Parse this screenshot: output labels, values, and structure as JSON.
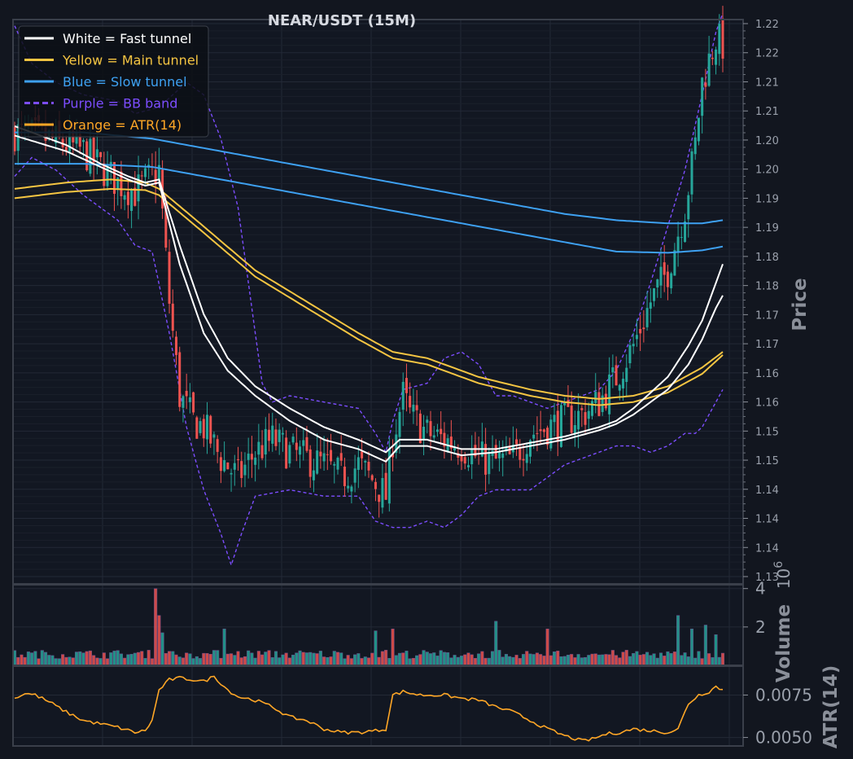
{
  "chart_data": [
    {
      "panel": "price",
      "type": "candlestick",
      "title": "NEAR/USDT (15M)",
      "ylabel": "Price",
      "y_tick_labels": [
        "1.22",
        "1.22",
        "1.21",
        "1.21",
        "1.20",
        "1.20",
        "1.19",
        "1.19",
        "1.18",
        "1.18",
        "1.17",
        "1.17",
        "1.16",
        "1.16",
        "1.15",
        "1.15",
        "1.14",
        "1.14",
        "1.14",
        "1.13"
      ],
      "ylim": [
        1.13,
        1.22
      ],
      "grid": true,
      "legend_position": "top-left",
      "legend": [
        {
          "label": "White = Fast tunnel",
          "color": "#ffffff",
          "style": "solid"
        },
        {
          "label": "Yellow = Main tunnel",
          "color": "#f5c542",
          "style": "solid"
        },
        {
          "label": "Blue = Slow tunnel",
          "color": "#3ea1f2",
          "style": "solid"
        },
        {
          "label": "Purple = BB band",
          "color": "#7c4dff",
          "style": "dashed"
        },
        {
          "label": "Orange = ATR(14)",
          "color": "#ffa726",
          "style": "solid"
        }
      ],
      "close_anchors": [
        [
          0,
          1.202
        ],
        [
          10,
          1.201
        ],
        [
          20,
          1.199
        ],
        [
          30,
          1.194
        ],
        [
          35,
          1.1925
        ],
        [
          40,
          1.195
        ],
        [
          42,
          1.196
        ],
        [
          45,
          1.175
        ],
        [
          48,
          1.16
        ],
        [
          52,
          1.156
        ],
        [
          55,
          1.155
        ],
        [
          60,
          1.15
        ],
        [
          65,
          1.147
        ],
        [
          70,
          1.151
        ],
        [
          75,
          1.153
        ],
        [
          80,
          1.151
        ],
        [
          85,
          1.15
        ],
        [
          90,
          1.149
        ],
        [
          95,
          1.147
        ],
        [
          100,
          1.149
        ],
        [
          105,
          1.146
        ],
        [
          108,
          1.144
        ],
        [
          110,
          1.153
        ],
        [
          113,
          1.16
        ],
        [
          115,
          1.157
        ],
        [
          120,
          1.154
        ],
        [
          125,
          1.153
        ],
        [
          130,
          1.152
        ],
        [
          135,
          1.15
        ],
        [
          140,
          1.1495
        ],
        [
          145,
          1.15
        ],
        [
          150,
          1.154
        ],
        [
          155,
          1.155
        ],
        [
          160,
          1.156
        ],
        [
          165,
          1.157
        ],
        [
          170,
          1.159
        ],
        [
          175,
          1.163
        ],
        [
          180,
          1.168
        ],
        [
          185,
          1.175
        ],
        [
          190,
          1.18
        ],
        [
          195,
          1.19
        ],
        [
          198,
          1.2
        ],
        [
          200,
          1.21
        ],
        [
          204,
          1.217
        ],
        [
          206,
          1.216
        ]
      ],
      "fast_tunnel_upper": [
        [
          0,
          1.203
        ],
        [
          15,
          1.2
        ],
        [
          25,
          1.197
        ],
        [
          33,
          1.195
        ],
        [
          38,
          1.194
        ],
        [
          42,
          1.1945
        ],
        [
          48,
          1.184
        ],
        [
          55,
          1.173
        ],
        [
          62,
          1.166
        ],
        [
          70,
          1.1615
        ],
        [
          80,
          1.158
        ],
        [
          90,
          1.155
        ],
        [
          100,
          1.153
        ],
        [
          108,
          1.151
        ],
        [
          112,
          1.153
        ],
        [
          120,
          1.153
        ],
        [
          130,
          1.1515
        ],
        [
          140,
          1.1515
        ],
        [
          150,
          1.1525
        ],
        [
          160,
          1.1535
        ],
        [
          170,
          1.155
        ],
        [
          175,
          1.156
        ],
        [
          180,
          1.158
        ],
        [
          190,
          1.163
        ],
        [
          196,
          1.168
        ],
        [
          200,
          1.172
        ],
        [
          204,
          1.178
        ],
        [
          206,
          1.181
        ]
      ],
      "fast_tunnel_lower": [
        [
          0,
          1.2015
        ],
        [
          15,
          1.199
        ],
        [
          25,
          1.1965
        ],
        [
          33,
          1.1945
        ],
        [
          38,
          1.1935
        ],
        [
          42,
          1.194
        ],
        [
          48,
          1.181
        ],
        [
          55,
          1.17
        ],
        [
          62,
          1.164
        ],
        [
          70,
          1.16
        ],
        [
          80,
          1.156
        ],
        [
          90,
          1.153
        ],
        [
          100,
          1.1515
        ],
        [
          108,
          1.1495
        ],
        [
          112,
          1.152
        ],
        [
          120,
          1.152
        ],
        [
          130,
          1.1505
        ],
        [
          140,
          1.151
        ],
        [
          150,
          1.152
        ],
        [
          160,
          1.153
        ],
        [
          170,
          1.1545
        ],
        [
          175,
          1.1555
        ],
        [
          180,
          1.157
        ],
        [
          190,
          1.161
        ],
        [
          196,
          1.165
        ],
        [
          200,
          1.169
        ],
        [
          204,
          1.174
        ],
        [
          206,
          1.176
        ]
      ],
      "main_tunnel_upper": [
        [
          0,
          1.193
        ],
        [
          15,
          1.194
        ],
        [
          28,
          1.1945
        ],
        [
          38,
          1.194
        ],
        [
          42,
          1.193
        ],
        [
          55,
          1.187
        ],
        [
          70,
          1.18
        ],
        [
          85,
          1.175
        ],
        [
          100,
          1.17
        ],
        [
          110,
          1.167
        ],
        [
          120,
          1.166
        ],
        [
          135,
          1.163
        ],
        [
          150,
          1.161
        ],
        [
          160,
          1.16
        ],
        [
          170,
          1.1595
        ],
        [
          180,
          1.16
        ],
        [
          190,
          1.1615
        ],
        [
          200,
          1.1645
        ],
        [
          206,
          1.167
        ]
      ],
      "main_tunnel_lower": [
        [
          0,
          1.1915
        ],
        [
          15,
          1.1925
        ],
        [
          28,
          1.193
        ],
        [
          38,
          1.1928
        ],
        [
          42,
          1.192
        ],
        [
          55,
          1.186
        ],
        [
          70,
          1.179
        ],
        [
          85,
          1.174
        ],
        [
          100,
          1.169
        ],
        [
          110,
          1.166
        ],
        [
          120,
          1.165
        ],
        [
          135,
          1.162
        ],
        [
          150,
          1.16
        ],
        [
          160,
          1.159
        ],
        [
          170,
          1.1585
        ],
        [
          180,
          1.159
        ],
        [
          190,
          1.1605
        ],
        [
          200,
          1.1635
        ],
        [
          206,
          1.1665
        ]
      ],
      "slow_tunnel_upper": [
        [
          0,
          1.202
        ],
        [
          20,
          1.202
        ],
        [
          40,
          1.201
        ],
        [
          60,
          1.199
        ],
        [
          80,
          1.197
        ],
        [
          100,
          1.195
        ],
        [
          120,
          1.193
        ],
        [
          140,
          1.191
        ],
        [
          160,
          1.189
        ],
        [
          175,
          1.188
        ],
        [
          190,
          1.1875
        ],
        [
          200,
          1.1875
        ],
        [
          206,
          1.188
        ]
      ],
      "slow_tunnel_lower": [
        [
          0,
          1.197
        ],
        [
          20,
          1.197
        ],
        [
          40,
          1.1965
        ],
        [
          60,
          1.1945
        ],
        [
          80,
          1.1925
        ],
        [
          100,
          1.1905
        ],
        [
          120,
          1.1885
        ],
        [
          140,
          1.1865
        ],
        [
          160,
          1.1845
        ],
        [
          175,
          1.183
        ],
        [
          190,
          1.1828
        ],
        [
          200,
          1.1832
        ],
        [
          206,
          1.1838
        ]
      ],
      "bb_upper": [
        [
          0,
          1.219
        ],
        [
          5,
          1.213
        ],
        [
          12,
          1.21
        ],
        [
          20,
          1.208
        ],
        [
          30,
          1.207
        ],
        [
          35,
          1.205
        ],
        [
          42,
          1.206
        ],
        [
          50,
          1.21
        ],
        [
          55,
          1.208
        ],
        [
          60,
          1.201
        ],
        [
          65,
          1.19
        ],
        [
          68,
          1.178
        ],
        [
          72,
          1.162
        ],
        [
          75,
          1.159
        ],
        [
          80,
          1.16
        ],
        [
          90,
          1.159
        ],
        [
          100,
          1.158
        ],
        [
          105,
          1.154
        ],
        [
          108,
          1.151
        ],
        [
          110,
          1.156
        ],
        [
          113,
          1.161
        ],
        [
          120,
          1.162
        ],
        [
          125,
          1.166
        ],
        [
          130,
          1.167
        ],
        [
          135,
          1.165
        ],
        [
          140,
          1.16
        ],
        [
          145,
          1.16
        ],
        [
          150,
          1.159
        ],
        [
          155,
          1.158
        ],
        [
          160,
          1.159
        ],
        [
          165,
          1.16
        ],
        [
          170,
          1.161
        ],
        [
          175,
          1.164
        ],
        [
          180,
          1.17
        ],
        [
          185,
          1.178
        ],
        [
          190,
          1.187
        ],
        [
          195,
          1.196
        ],
        [
          200,
          1.208
        ],
        [
          204,
          1.218
        ],
        [
          206,
          1.221
        ]
      ],
      "bb_lower": [
        [
          0,
          1.195
        ],
        [
          5,
          1.198
        ],
        [
          12,
          1.196
        ],
        [
          20,
          1.192
        ],
        [
          30,
          1.188
        ],
        [
          35,
          1.184
        ],
        [
          40,
          1.183
        ],
        [
          45,
          1.17
        ],
        [
          50,
          1.155
        ],
        [
          55,
          1.145
        ],
        [
          60,
          1.138
        ],
        [
          63,
          1.133
        ],
        [
          66,
          1.138
        ],
        [
          70,
          1.144
        ],
        [
          80,
          1.145
        ],
        [
          90,
          1.144
        ],
        [
          100,
          1.144
        ],
        [
          105,
          1.14
        ],
        [
          110,
          1.139
        ],
        [
          115,
          1.139
        ],
        [
          120,
          1.14
        ],
        [
          125,
          1.139
        ],
        [
          130,
          1.141
        ],
        [
          135,
          1.144
        ],
        [
          140,
          1.145
        ],
        [
          150,
          1.145
        ],
        [
          155,
          1.147
        ],
        [
          160,
          1.149
        ],
        [
          170,
          1.151
        ],
        [
          175,
          1.152
        ],
        [
          180,
          1.152
        ],
        [
          185,
          1.151
        ],
        [
          190,
          1.152
        ],
        [
          195,
          1.154
        ],
        [
          198,
          1.154
        ],
        [
          200,
          1.155
        ],
        [
          204,
          1.159
        ],
        [
          206,
          1.161
        ]
      ]
    },
    {
      "panel": "volume",
      "type": "bar",
      "ylabel": "Volume",
      "multiplier_label": "1e6",
      "y_tick_labels": [
        "2",
        "4"
      ],
      "y_ticks": [
        2,
        4
      ],
      "ylim": [
        0,
        4.2
      ],
      "spikes": [
        [
          41,
          4.0
        ],
        [
          42,
          2.6
        ],
        [
          43,
          1.7
        ],
        [
          61,
          1.9
        ],
        [
          105,
          1.8
        ],
        [
          110,
          1.9
        ],
        [
          140,
          2.3
        ],
        [
          155,
          1.9
        ],
        [
          193,
          2.6
        ],
        [
          197,
          1.9
        ],
        [
          201,
          2.1
        ],
        [
          204,
          1.6
        ]
      ],
      "series": [
        {
          "name": "Volume",
          "base_level": 0.35
        }
      ]
    },
    {
      "panel": "atr",
      "type": "line",
      "ylabel": "ATR(14)",
      "y_tick_labels": [
        "0.0050",
        "0.0075"
      ],
      "y_ticks": [
        0.005,
        0.0075
      ],
      "ylim": [
        0.0045,
        0.0092
      ],
      "series": [
        {
          "name": "Orange = ATR(14)"
        }
      ],
      "values_anchors": [
        [
          0,
          0.0073
        ],
        [
          3,
          0.0076
        ],
        [
          6,
          0.0075
        ],
        [
          10,
          0.0071
        ],
        [
          15,
          0.0065
        ],
        [
          20,
          0.006
        ],
        [
          25,
          0.0058
        ],
        [
          30,
          0.0056
        ],
        [
          35,
          0.0053
        ],
        [
          38,
          0.0054
        ],
        [
          40,
          0.006
        ],
        [
          42,
          0.0078
        ],
        [
          45,
          0.0084
        ],
        [
          48,
          0.0085
        ],
        [
          52,
          0.0084
        ],
        [
          55,
          0.0083
        ],
        [
          58,
          0.0086
        ],
        [
          62,
          0.0078
        ],
        [
          65,
          0.0074
        ],
        [
          70,
          0.0072
        ],
        [
          75,
          0.0068
        ],
        [
          80,
          0.0062
        ],
        [
          85,
          0.006
        ],
        [
          90,
          0.0055
        ],
        [
          95,
          0.0053
        ],
        [
          100,
          0.0053
        ],
        [
          105,
          0.0054
        ],
        [
          108,
          0.0055
        ],
        [
          110,
          0.0075
        ],
        [
          113,
          0.0077
        ],
        [
          118,
          0.0075
        ],
        [
          125,
          0.0075
        ],
        [
          130,
          0.0073
        ],
        [
          135,
          0.0072
        ],
        [
          140,
          0.0068
        ],
        [
          145,
          0.0065
        ],
        [
          150,
          0.006
        ],
        [
          155,
          0.0055
        ],
        [
          160,
          0.0051
        ],
        [
          165,
          0.0048
        ],
        [
          168,
          0.0049
        ],
        [
          172,
          0.0052
        ],
        [
          176,
          0.0053
        ],
        [
          180,
          0.0055
        ],
        [
          185,
          0.0054
        ],
        [
          190,
          0.0053
        ],
        [
          193,
          0.0055
        ],
        [
          196,
          0.007
        ],
        [
          199,
          0.0075
        ],
        [
          202,
          0.0077
        ],
        [
          204,
          0.008
        ],
        [
          206,
          0.0078
        ]
      ]
    }
  ],
  "x_count": 207
}
